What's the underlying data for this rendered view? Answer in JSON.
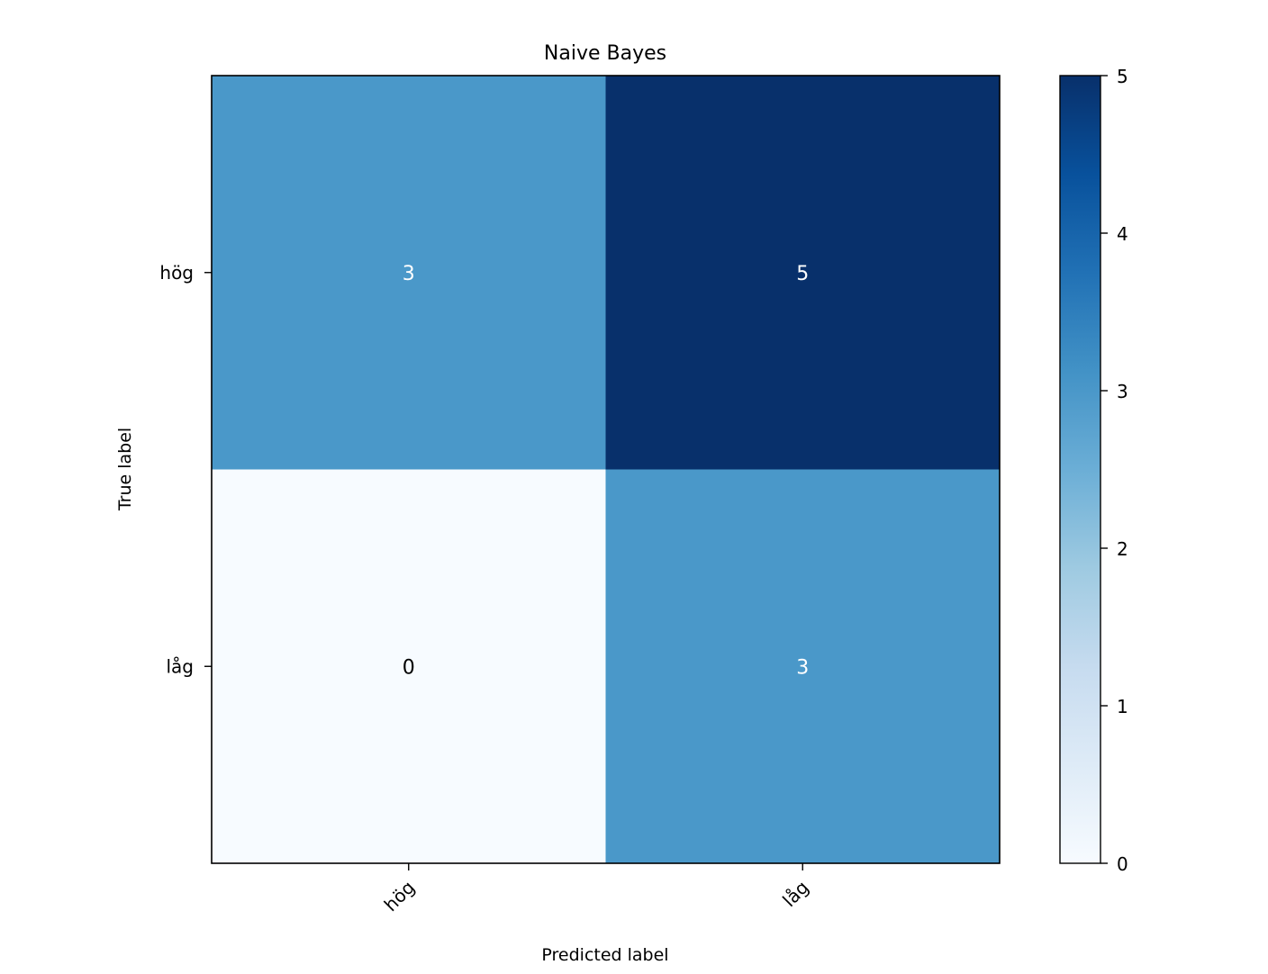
{
  "chart_data": {
    "type": "heatmap",
    "title": "Naive Bayes",
    "xlabel": "Predicted label",
    "ylabel": "True label",
    "x_categories": [
      "hög",
      "låg"
    ],
    "y_categories": [
      "hög",
      "låg"
    ],
    "values": [
      [
        3,
        5
      ],
      [
        0,
        3
      ]
    ],
    "colormap": "Blues",
    "colorbar": {
      "range": [
        0,
        5
      ],
      "ticks": [
        0,
        1,
        2,
        3,
        4,
        5
      ]
    },
    "grid": false
  }
}
